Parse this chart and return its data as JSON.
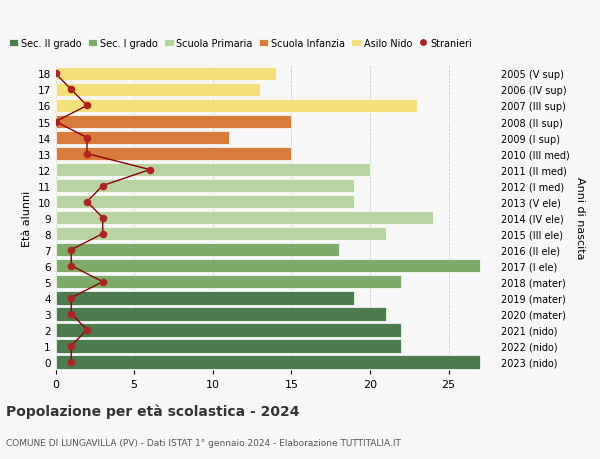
{
  "ages": [
    18,
    17,
    16,
    15,
    14,
    13,
    12,
    11,
    10,
    9,
    8,
    7,
    6,
    5,
    4,
    3,
    2,
    1,
    0
  ],
  "years": [
    "2005 (V sup)",
    "2006 (IV sup)",
    "2007 (III sup)",
    "2008 (II sup)",
    "2009 (I sup)",
    "2010 (III med)",
    "2011 (II med)",
    "2012 (I med)",
    "2013 (V ele)",
    "2014 (IV ele)",
    "2015 (III ele)",
    "2016 (II ele)",
    "2017 (I ele)",
    "2018 (mater)",
    "2019 (mater)",
    "2020 (mater)",
    "2021 (nido)",
    "2022 (nido)",
    "2023 (nido)"
  ],
  "bar_values": [
    27,
    22,
    22,
    21,
    19,
    22,
    27,
    18,
    21,
    24,
    19,
    19,
    20,
    15,
    11,
    15,
    23,
    13,
    14
  ],
  "bar_colors": [
    "#4a7c4e",
    "#4a7c4e",
    "#4a7c4e",
    "#4a7c4e",
    "#4a7c4e",
    "#7dab6a",
    "#7dab6a",
    "#7dab6a",
    "#b8d4a0",
    "#b8d4a0",
    "#b8d4a0",
    "#b8d4a0",
    "#b8d4a0",
    "#d97b3a",
    "#d97b3a",
    "#d97b3a",
    "#f5e07a",
    "#f5e07a",
    "#f5e07a"
  ],
  "stranieri_values": [
    1,
    1,
    2,
    1,
    1,
    3,
    1,
    1,
    3,
    3,
    2,
    3,
    6,
    2,
    2,
    0,
    2,
    1,
    0
  ],
  "legend_labels": [
    "Sec. II grado",
    "Sec. I grado",
    "Scuola Primaria",
    "Scuola Infanzia",
    "Asilo Nido",
    "Stranieri"
  ],
  "legend_colors": [
    "#4a7c4e",
    "#7dab6a",
    "#b8d4a0",
    "#d97b3a",
    "#f5e07a",
    "#b22222"
  ],
  "xlabel_left": "Età alunni",
  "ylabel_right": "Anni di nascita",
  "title": "Popolazione per età scolastica - 2024",
  "subtitle": "COMUNE DI LUNGAVILLA (PV) - Dati ISTAT 1° gennaio 2024 - Elaborazione TUTTITALIA.IT",
  "xlim": [
    0,
    28
  ],
  "xticks": [
    0,
    5,
    10,
    15,
    20,
    25
  ],
  "background_color": "#f7f7f7"
}
